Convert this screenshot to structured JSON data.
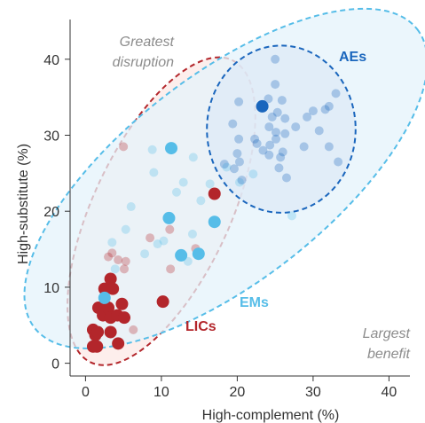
{
  "chart_data": {
    "type": "scatter",
    "xlabel": "High-complement (%)",
    "ylabel": "High-substitute (%)",
    "xlim": [
      -2,
      42
    ],
    "ylim": [
      -2,
      45
    ],
    "x_ticks": [
      "0",
      "10",
      "20",
      "30",
      "40"
    ],
    "y_ticks": [
      "0",
      "10",
      "20",
      "30",
      "40"
    ],
    "grid": false,
    "annotations": {
      "top_left": [
        "Greatest",
        "disruption"
      ],
      "bottom_right": [
        "Largest",
        "benefit"
      ]
    },
    "groups": [
      {
        "name": "AEs",
        "color": "#1a66bd"
      },
      {
        "name": "EMs",
        "color": "#56bde8"
      },
      {
        "name": "LICs",
        "color": "#b3262b"
      }
    ],
    "ellipses": [
      {
        "group": "LICs",
        "cx": 10,
        "cy": 20,
        "rx": 22,
        "ry": 9,
        "angle_deg": -65,
        "fill": "#fce8e6",
        "stroke": "#b3262b"
      },
      {
        "group": "EMs",
        "cx": 18.5,
        "cy": 24.3,
        "rx": 32,
        "ry": 13.5,
        "angle_deg": -38,
        "fill": "#e4f3fb",
        "stroke": "#56bde8"
      },
      {
        "group": "AEs",
        "cx": 25.8,
        "cy": 30.8,
        "rx": 9.8,
        "ry": 11,
        "angle_deg": 0,
        "fill": "#dde9f7",
        "stroke": "#1a66bd"
      }
    ],
    "points": [
      {
        "x": 2.5,
        "y": 9.8,
        "group": "LICs",
        "emphasis": true
      },
      {
        "x": 3.3,
        "y": 11.1,
        "group": "LICs",
        "emphasis": true
      },
      {
        "x": 3.6,
        "y": 9.8,
        "group": "LICs",
        "emphasis": true
      },
      {
        "x": 1.7,
        "y": 7.3,
        "group": "LICs",
        "emphasis": true
      },
      {
        "x": 2.3,
        "y": 6.3,
        "group": "LICs",
        "emphasis": true
      },
      {
        "x": 3.0,
        "y": 7.3,
        "group": "LICs",
        "emphasis": true
      },
      {
        "x": 3.3,
        "y": 6.0,
        "group": "LICs",
        "emphasis": true
      },
      {
        "x": 4.2,
        "y": 6.3,
        "group": "LICs",
        "emphasis": true
      },
      {
        "x": 4.8,
        "y": 7.8,
        "group": "LICs",
        "emphasis": true
      },
      {
        "x": 5.1,
        "y": 6.0,
        "group": "LICs",
        "emphasis": true
      },
      {
        "x": 1.0,
        "y": 4.4,
        "group": "LICs",
        "emphasis": true
      },
      {
        "x": 1.3,
        "y": 3.7,
        "group": "LICs",
        "emphasis": true
      },
      {
        "x": 1.6,
        "y": 4.1,
        "group": "LICs",
        "emphasis": true
      },
      {
        "x": 3.3,
        "y": 4.1,
        "group": "LICs",
        "emphasis": true
      },
      {
        "x": 1.0,
        "y": 2.2,
        "group": "LICs",
        "emphasis": true
      },
      {
        "x": 1.5,
        "y": 2.2,
        "group": "LICs",
        "emphasis": true
      },
      {
        "x": 4.3,
        "y": 2.6,
        "group": "LICs",
        "emphasis": true
      },
      {
        "x": 10.2,
        "y": 8.1,
        "group": "LICs",
        "emphasis": true
      },
      {
        "x": 17.0,
        "y": 22.3,
        "group": "LICs",
        "emphasis": true
      },
      {
        "x": 2.5,
        "y": 8.6,
        "group": "EMs",
        "emphasis": true
      },
      {
        "x": 11.3,
        "y": 28.3,
        "group": "EMs",
        "emphasis": true
      },
      {
        "x": 11.0,
        "y": 19.1,
        "group": "EMs",
        "emphasis": true
      },
      {
        "x": 17.0,
        "y": 18.6,
        "group": "EMs",
        "emphasis": true
      },
      {
        "x": 12.6,
        "y": 14.2,
        "group": "EMs",
        "emphasis": true
      },
      {
        "x": 14.9,
        "y": 14.4,
        "group": "EMs",
        "emphasis": true
      },
      {
        "x": 23.3,
        "y": 33.8,
        "group": "AEs",
        "emphasis": true
      },
      {
        "x": 5.0,
        "y": 28.5,
        "group": "LICs",
        "emphasis": false
      },
      {
        "x": 3.5,
        "y": 14.5,
        "group": "LICs",
        "emphasis": false
      },
      {
        "x": 4.3,
        "y": 13.6,
        "group": "LICs",
        "emphasis": false
      },
      {
        "x": 5.3,
        "y": 13.4,
        "group": "LICs",
        "emphasis": false
      },
      {
        "x": 5.1,
        "y": 12.4,
        "group": "LICs",
        "emphasis": false
      },
      {
        "x": 8.5,
        "y": 16.5,
        "group": "LICs",
        "emphasis": false
      },
      {
        "x": 11.1,
        "y": 17.6,
        "group": "LICs",
        "emphasis": false
      },
      {
        "x": 14.5,
        "y": 15.1,
        "group": "LICs",
        "emphasis": false
      },
      {
        "x": 11.2,
        "y": 12.4,
        "group": "LICs",
        "emphasis": false
      },
      {
        "x": 6.3,
        "y": 4.4,
        "group": "LICs",
        "emphasis": false
      },
      {
        "x": 3.0,
        "y": 14.0,
        "group": "LICs",
        "emphasis": false
      },
      {
        "x": 8.8,
        "y": 28.1,
        "group": "EMs",
        "emphasis": false
      },
      {
        "x": 9.0,
        "y": 25.1,
        "group": "EMs",
        "emphasis": false
      },
      {
        "x": 14.2,
        "y": 27.1,
        "group": "EMs",
        "emphasis": false
      },
      {
        "x": 12.0,
        "y": 22.5,
        "group": "EMs",
        "emphasis": false
      },
      {
        "x": 12.9,
        "y": 23.8,
        "group": "EMs",
        "emphasis": false
      },
      {
        "x": 15.2,
        "y": 21.4,
        "group": "EMs",
        "emphasis": false
      },
      {
        "x": 16.4,
        "y": 23.6,
        "group": "EMs",
        "emphasis": false
      },
      {
        "x": 18.6,
        "y": 25.8,
        "group": "EMs",
        "emphasis": false
      },
      {
        "x": 5.3,
        "y": 17.6,
        "group": "EMs",
        "emphasis": false
      },
      {
        "x": 3.5,
        "y": 15.9,
        "group": "EMs",
        "emphasis": false
      },
      {
        "x": 9.5,
        "y": 15.7,
        "group": "EMs",
        "emphasis": false
      },
      {
        "x": 10.3,
        "y": 16.1,
        "group": "EMs",
        "emphasis": false
      },
      {
        "x": 14.1,
        "y": 17.0,
        "group": "EMs",
        "emphasis": false
      },
      {
        "x": 7.8,
        "y": 14.4,
        "group": "EMs",
        "emphasis": false
      },
      {
        "x": 13.5,
        "y": 13.4,
        "group": "EMs",
        "emphasis": false
      },
      {
        "x": 3.9,
        "y": 12.4,
        "group": "EMs",
        "emphasis": false
      },
      {
        "x": 6.0,
        "y": 20.6,
        "group": "EMs",
        "emphasis": false
      },
      {
        "x": 27.2,
        "y": 19.4,
        "group": "EMs",
        "emphasis": false
      },
      {
        "x": 20.3,
        "y": 23.8,
        "group": "EMs",
        "emphasis": false
      },
      {
        "x": 22.1,
        "y": 24.9,
        "group": "EMs",
        "emphasis": false
      },
      {
        "x": 25.0,
        "y": 40.0,
        "group": "AEs",
        "emphasis": false
      },
      {
        "x": 25.0,
        "y": 36.7,
        "group": "AEs",
        "emphasis": false
      },
      {
        "x": 20.2,
        "y": 34.4,
        "group": "AEs",
        "emphasis": false
      },
      {
        "x": 24.1,
        "y": 34.8,
        "group": "AEs",
        "emphasis": false
      },
      {
        "x": 25.9,
        "y": 34.6,
        "group": "AEs",
        "emphasis": false
      },
      {
        "x": 24.6,
        "y": 32.4,
        "group": "AEs",
        "emphasis": false
      },
      {
        "x": 25.3,
        "y": 33.0,
        "group": "AEs",
        "emphasis": false
      },
      {
        "x": 26.3,
        "y": 32.2,
        "group": "AEs",
        "emphasis": false
      },
      {
        "x": 29.2,
        "y": 32.4,
        "group": "AEs",
        "emphasis": false
      },
      {
        "x": 30.0,
        "y": 33.2,
        "group": "AEs",
        "emphasis": false
      },
      {
        "x": 33.0,
        "y": 35.5,
        "group": "AEs",
        "emphasis": false
      },
      {
        "x": 32.1,
        "y": 33.8,
        "group": "AEs",
        "emphasis": false
      },
      {
        "x": 31.6,
        "y": 33.4,
        "group": "AEs",
        "emphasis": false
      },
      {
        "x": 24.2,
        "y": 31.1,
        "group": "AEs",
        "emphasis": false
      },
      {
        "x": 25.1,
        "y": 30.4,
        "group": "AEs",
        "emphasis": false
      },
      {
        "x": 27.7,
        "y": 31.1,
        "group": "AEs",
        "emphasis": false
      },
      {
        "x": 19.4,
        "y": 31.5,
        "group": "AEs",
        "emphasis": false
      },
      {
        "x": 30.8,
        "y": 30.6,
        "group": "AEs",
        "emphasis": false
      },
      {
        "x": 20.2,
        "y": 29.5,
        "group": "AEs",
        "emphasis": false
      },
      {
        "x": 22.3,
        "y": 29.5,
        "group": "AEs",
        "emphasis": false
      },
      {
        "x": 25.1,
        "y": 29.5,
        "group": "AEs",
        "emphasis": false
      },
      {
        "x": 26.3,
        "y": 30.2,
        "group": "AEs",
        "emphasis": false
      },
      {
        "x": 22.6,
        "y": 28.9,
        "group": "AEs",
        "emphasis": false
      },
      {
        "x": 24.3,
        "y": 28.7,
        "group": "AEs",
        "emphasis": false
      },
      {
        "x": 23.4,
        "y": 28.0,
        "group": "AEs",
        "emphasis": false
      },
      {
        "x": 26.0,
        "y": 27.8,
        "group": "AEs",
        "emphasis": false
      },
      {
        "x": 28.8,
        "y": 28.5,
        "group": "AEs",
        "emphasis": false
      },
      {
        "x": 32.1,
        "y": 28.5,
        "group": "AEs",
        "emphasis": false
      },
      {
        "x": 20.0,
        "y": 27.6,
        "group": "AEs",
        "emphasis": false
      },
      {
        "x": 24.2,
        "y": 27.4,
        "group": "AEs",
        "emphasis": false
      },
      {
        "x": 25.7,
        "y": 27.1,
        "group": "AEs",
        "emphasis": false
      },
      {
        "x": 20.3,
        "y": 26.5,
        "group": "AEs",
        "emphasis": false
      },
      {
        "x": 19.6,
        "y": 25.6,
        "group": "AEs",
        "emphasis": false
      },
      {
        "x": 33.3,
        "y": 26.5,
        "group": "AEs",
        "emphasis": false
      },
      {
        "x": 25.5,
        "y": 25.7,
        "group": "AEs",
        "emphasis": false
      },
      {
        "x": 20.6,
        "y": 24.1,
        "group": "AEs",
        "emphasis": false
      },
      {
        "x": 26.5,
        "y": 24.4,
        "group": "AEs",
        "emphasis": false
      },
      {
        "x": 18.3,
        "y": 26.2,
        "group": "AEs",
        "emphasis": false
      }
    ]
  }
}
